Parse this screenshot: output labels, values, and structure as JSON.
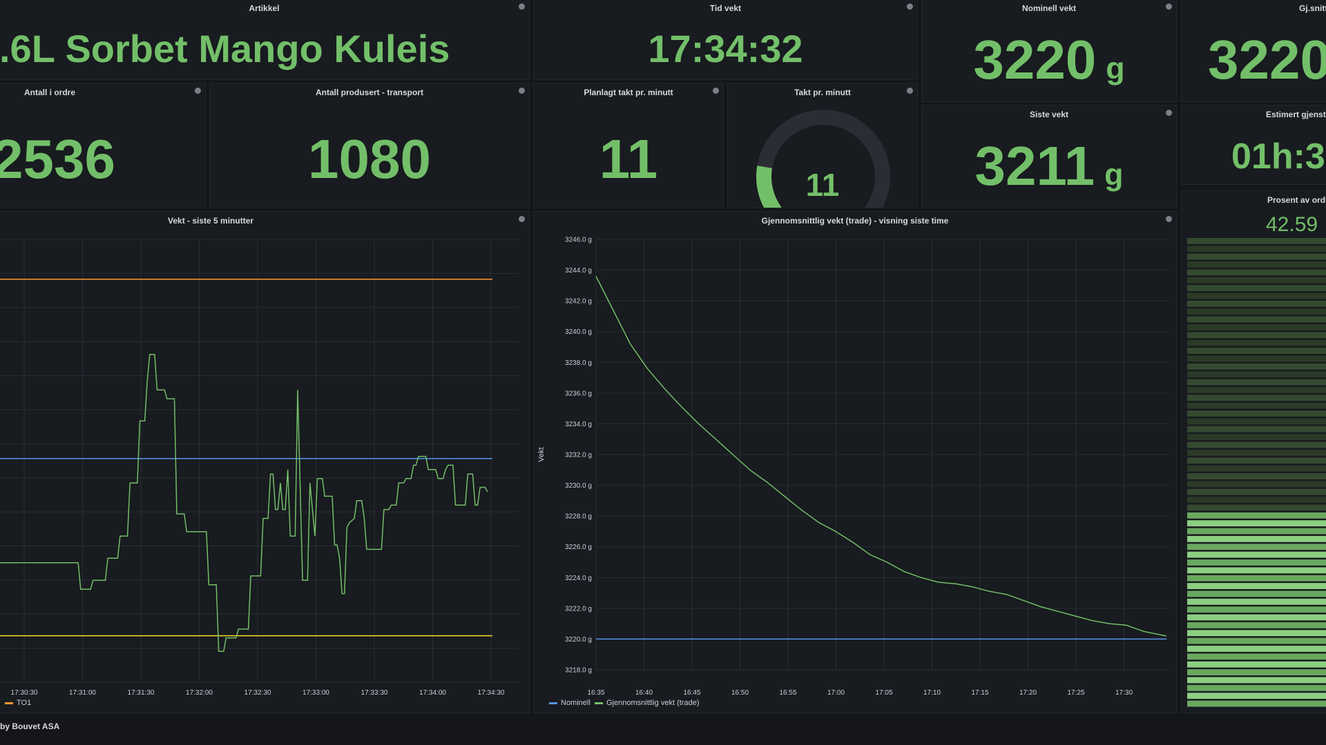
{
  "panels": {
    "artikkel": {
      "title": "Artikkel",
      "value": ".6L Sorbet Mango Kuleis"
    },
    "tid_vekt": {
      "title": "Tid vekt",
      "value": "17:34:32"
    },
    "nominell_vekt": {
      "title": "Nominell vekt",
      "value": "3220",
      "unit": "g"
    },
    "gjsnitt_vekt": {
      "title": "Gj.snittlig vekt (",
      "value": "3220"
    },
    "antall_ordre": {
      "title": "Antall i ordre",
      "value": "2536"
    },
    "antall_produsert": {
      "title": "Antall produsert - transport",
      "value": "1080"
    },
    "planlagt_takt": {
      "title": "Planlagt takt pr. minutt",
      "value": "11"
    },
    "takt": {
      "title": "Takt pr. minutt",
      "value": "11",
      "gauge_fraction": 0.18
    },
    "siste_vekt": {
      "title": "Siste vekt",
      "value": "3211",
      "unit": "g"
    },
    "estimert": {
      "title": "Estimert gjenståe",
      "value": "01h:3"
    },
    "prosent": {
      "title": "Prosent av ordren",
      "value": "42.59",
      "fill_fraction": 0.426
    }
  },
  "footer": {
    "text": "by Bouvet ASA"
  },
  "colors": {
    "green": "#73bf69",
    "orange": "#ff9830",
    "yellow": "#fade2a",
    "blue": "#5794f2"
  },
  "chart_data": [
    {
      "type": "line",
      "title": "Vekt - siste 5 minutter",
      "x_ticks": [
        "17:30:30",
        "17:31:00",
        "17:31:30",
        "17:32:00",
        "17:32:30",
        "17:33:00",
        "17:33:30",
        "17:34:00",
        "17:34:30"
      ],
      "legend": [
        {
          "name": "TO1",
          "color": "#ff9830"
        }
      ],
      "thresholds": [
        {
          "name": "upper",
          "color": "#ff9830",
          "level": 0.91
        },
        {
          "name": "nominal",
          "color": "#5794f2",
          "level": 0.505
        },
        {
          "name": "lower",
          "color": "#fade2a",
          "level": 0.105
        }
      ],
      "series": [
        {
          "color": "#73bf69",
          "points": [
            [
              0.0,
              0.27
            ],
            [
              0.16,
              0.27
            ],
            [
              0.165,
              0.21
            ],
            [
              0.185,
              0.21
            ],
            [
              0.19,
              0.23
            ],
            [
              0.215,
              0.23
            ],
            [
              0.22,
              0.28
            ],
            [
              0.24,
              0.28
            ],
            [
              0.245,
              0.33
            ],
            [
              0.26,
              0.33
            ],
            [
              0.265,
              0.45
            ],
            [
              0.28,
              0.45
            ],
            [
              0.285,
              0.59
            ],
            [
              0.295,
              0.59
            ],
            [
              0.3,
              0.68
            ],
            [
              0.305,
              0.74
            ],
            [
              0.315,
              0.74
            ],
            [
              0.32,
              0.66
            ],
            [
              0.335,
              0.66
            ],
            [
              0.34,
              0.64
            ],
            [
              0.355,
              0.64
            ],
            [
              0.36,
              0.38
            ],
            [
              0.375,
              0.38
            ],
            [
              0.38,
              0.34
            ],
            [
              0.42,
              0.34
            ],
            [
              0.425,
              0.22
            ],
            [
              0.44,
              0.22
            ],
            [
              0.445,
              0.07
            ],
            [
              0.455,
              0.07
            ],
            [
              0.46,
              0.1
            ],
            [
              0.48,
              0.1
            ],
            [
              0.485,
              0.12
            ],
            [
              0.505,
              0.12
            ],
            [
              0.51,
              0.24
            ],
            [
              0.53,
              0.24
            ],
            [
              0.535,
              0.37
            ],
            [
              0.545,
              0.37
            ],
            [
              0.55,
              0.47
            ],
            [
              0.555,
              0.47
            ],
            [
              0.56,
              0.39
            ],
            [
              0.565,
              0.39
            ],
            [
              0.57,
              0.45
            ],
            [
              0.575,
              0.39
            ],
            [
              0.58,
              0.39
            ],
            [
              0.585,
              0.48
            ],
            [
              0.59,
              0.33
            ],
            [
              0.6,
              0.33
            ],
            [
              0.605,
              0.66
            ],
            [
              0.615,
              0.23
            ],
            [
              0.625,
              0.23
            ],
            [
              0.63,
              0.45
            ],
            [
              0.64,
              0.33
            ],
            [
              0.645,
              0.46
            ],
            [
              0.655,
              0.46
            ],
            [
              0.66,
              0.42
            ],
            [
              0.675,
              0.42
            ],
            [
              0.68,
              0.31
            ],
            [
              0.685,
              0.31
            ],
            [
              0.69,
              0.28
            ],
            [
              0.695,
              0.2
            ],
            [
              0.7,
              0.2
            ],
            [
              0.705,
              0.35
            ],
            [
              0.71,
              0.36
            ],
            [
              0.72,
              0.37
            ],
            [
              0.725,
              0.41
            ],
            [
              0.735,
              0.41
            ],
            [
              0.74,
              0.37
            ],
            [
              0.745,
              0.3
            ],
            [
              0.775,
              0.3
            ],
            [
              0.78,
              0.39
            ],
            [
              0.79,
              0.39
            ],
            [
              0.795,
              0.4
            ],
            [
              0.805,
              0.4
            ],
            [
              0.81,
              0.45
            ],
            [
              0.82,
              0.45
            ],
            [
              0.825,
              0.46
            ],
            [
              0.835,
              0.46
            ],
            [
              0.84,
              0.49
            ],
            [
              0.845,
              0.49
            ],
            [
              0.85,
              0.51
            ],
            [
              0.865,
              0.51
            ],
            [
              0.87,
              0.48
            ],
            [
              0.885,
              0.48
            ],
            [
              0.89,
              0.46
            ],
            [
              0.9,
              0.46
            ],
            [
              0.905,
              0.48
            ],
            [
              0.91,
              0.49
            ],
            [
              0.92,
              0.49
            ],
            [
              0.925,
              0.4
            ],
            [
              0.945,
              0.4
            ],
            [
              0.95,
              0.47
            ],
            [
              0.96,
              0.47
            ],
            [
              0.965,
              0.4
            ],
            [
              0.97,
              0.4
            ],
            [
              0.975,
              0.44
            ],
            [
              0.985,
              0.44
            ],
            [
              0.99,
              0.43
            ]
          ]
        }
      ]
    },
    {
      "type": "line",
      "title": "Gjennomsnittlig vekt (trade) - visning siste time",
      "ylabel": "Vekt",
      "x_ticks": [
        "16:35",
        "16:40",
        "16:45",
        "16:50",
        "16:55",
        "17:00",
        "17:05",
        "17:10",
        "17:15",
        "17:20",
        "17:25",
        "17:30"
      ],
      "y_ticks": [
        "3246.0 g",
        "3244.0 g",
        "3242.0 g",
        "3240.0 g",
        "3238.0 g",
        "3236.0 g",
        "3234.0 g",
        "3232.0 g",
        "3230.0 g",
        "3228.0 g",
        "3226.0 g",
        "3224.0 g",
        "3222.0 g",
        "3220.0 g",
        "3218.0 g"
      ],
      "ylim": [
        3218,
        3246
      ],
      "legend": [
        {
          "name": "Nominell",
          "color": "#5794f2"
        },
        {
          "name": "Gjennomsnittlig vekt (trade)",
          "color": "#73bf69"
        }
      ],
      "series": [
        {
          "name": "Nominell",
          "color": "#5794f2",
          "x": [
            0,
            1
          ],
          "y": [
            3220,
            3220
          ]
        },
        {
          "name": "Gjennomsnittlig vekt (trade)",
          "color": "#73bf69",
          "x": [
            0,
            0.03,
            0.06,
            0.09,
            0.12,
            0.15,
            0.18,
            0.21,
            0.24,
            0.27,
            0.3,
            0.33,
            0.36,
            0.39,
            0.42,
            0.45,
            0.48,
            0.51,
            0.54,
            0.57,
            0.6,
            0.63,
            0.66,
            0.69,
            0.72,
            0.75,
            0.78,
            0.81,
            0.84,
            0.87,
            0.9,
            0.93,
            0.96,
            1.0
          ],
          "y": [
            3243.6,
            3241.4,
            3239.2,
            3237.6,
            3236.3,
            3235.1,
            3234.0,
            3233.0,
            3232.0,
            3231.0,
            3230.2,
            3229.3,
            3228.4,
            3227.6,
            3227.0,
            3226.3,
            3225.5,
            3225.0,
            3224.4,
            3224.0,
            3223.7,
            3223.6,
            3223.4,
            3223.1,
            3222.9,
            3222.5,
            3222.1,
            3221.8,
            3221.5,
            3221.2,
            3221.0,
            3220.9,
            3220.5,
            3220.2
          ]
        }
      ]
    }
  ]
}
